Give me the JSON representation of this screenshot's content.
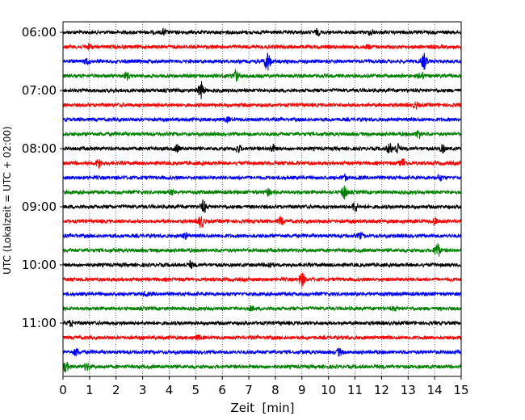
{
  "chart_data": {
    "type": "line",
    "title": "",
    "xlabel": "Zeit  [min]",
    "ylabel": "UTC (Lokalzeit = UTC + 02:00)",
    "xlim": [
      0,
      15
    ],
    "x_ticks": [
      "0",
      "1",
      "2",
      "3",
      "4",
      "5",
      "6",
      "7",
      "8",
      "9",
      "10",
      "11",
      "12",
      "13",
      "14",
      "15"
    ],
    "y_tick_labels": [
      "06:00",
      "07:00",
      "08:00",
      "09:00",
      "10:00",
      "11:00"
    ],
    "trace_interval_min": 15,
    "grid": "vertical dotted at each minute",
    "colors": [
      "#000000",
      "#ff0000",
      "#0000ff",
      "#008000"
    ],
    "traces": [
      {
        "start": "06:00",
        "color": "#000000",
        "events": [
          {
            "t": 3.8,
            "amp": 3
          },
          {
            "t": 9.6,
            "amp": 3
          },
          {
            "t": 11.6,
            "amp": 3
          }
        ]
      },
      {
        "start": "06:15",
        "color": "#ff0000",
        "events": [
          {
            "t": 1.0,
            "amp": 3
          },
          {
            "t": 11.5,
            "amp": 2
          }
        ]
      },
      {
        "start": "06:30",
        "color": "#0000ff",
        "events": [
          {
            "t": 7.7,
            "amp": 12
          },
          {
            "t": 13.6,
            "amp": 9
          },
          {
            "t": 0.9,
            "amp": 3
          }
        ]
      },
      {
        "start": "06:45",
        "color": "#008000",
        "events": [
          {
            "t": 2.4,
            "amp": 4
          },
          {
            "t": 6.5,
            "amp": 7
          },
          {
            "t": 13.5,
            "amp": 4
          }
        ]
      },
      {
        "start": "07:00",
        "color": "#000000",
        "events": [
          {
            "t": 5.2,
            "amp": 10
          }
        ]
      },
      {
        "start": "07:15",
        "color": "#ff0000",
        "events": [
          {
            "t": 13.3,
            "amp": 3
          }
        ]
      },
      {
        "start": "07:30",
        "color": "#0000ff",
        "events": [
          {
            "t": 6.2,
            "amp": 2
          }
        ]
      },
      {
        "start": "07:45",
        "color": "#008000",
        "events": [
          {
            "t": 13.4,
            "amp": 5
          }
        ]
      },
      {
        "start": "08:00",
        "color": "#000000",
        "events": [
          {
            "t": 4.3,
            "amp": 4
          },
          {
            "t": 6.6,
            "amp": 4
          },
          {
            "t": 7.9,
            "amp": 4
          },
          {
            "t": 12.3,
            "amp": 6
          },
          {
            "t": 12.6,
            "amp": 6
          },
          {
            "t": 14.3,
            "amp": 4
          }
        ]
      },
      {
        "start": "08:15",
        "color": "#ff0000",
        "events": [
          {
            "t": 1.35,
            "amp": 5
          },
          {
            "t": 12.8,
            "amp": 5
          }
        ]
      },
      {
        "start": "08:30",
        "color": "#0000ff",
        "events": [
          {
            "t": 10.6,
            "amp": 3
          },
          {
            "t": 14.2,
            "amp": 3
          }
        ]
      },
      {
        "start": "08:45",
        "color": "#008000",
        "events": [
          {
            "t": 4.1,
            "amp": 3
          },
          {
            "t": 7.7,
            "amp": 4
          },
          {
            "t": 10.6,
            "amp": 8
          }
        ]
      },
      {
        "start": "09:00",
        "color": "#000000",
        "events": [
          {
            "t": 5.3,
            "amp": 7
          },
          {
            "t": 11.0,
            "amp": 6
          }
        ]
      },
      {
        "start": "09:15",
        "color": "#ff0000",
        "events": [
          {
            "t": 5.2,
            "amp": 7
          },
          {
            "t": 8.2,
            "amp": 4
          },
          {
            "t": 14.0,
            "amp": 4
          }
        ]
      },
      {
        "start": "09:30",
        "color": "#0000ff",
        "events": [
          {
            "t": 4.6,
            "amp": 3
          },
          {
            "t": 11.2,
            "amp": 3
          }
        ]
      },
      {
        "start": "09:45",
        "color": "#008000",
        "events": [
          {
            "t": 14.1,
            "amp": 9
          }
        ]
      },
      {
        "start": "10:00",
        "color": "#000000",
        "events": [
          {
            "t": 4.8,
            "amp": 4
          },
          {
            "t": 7.8,
            "amp": 3
          }
        ]
      },
      {
        "start": "10:15",
        "color": "#ff0000",
        "events": [
          {
            "t": 9.0,
            "amp": 8
          }
        ]
      },
      {
        "start": "10:30",
        "color": "#0000ff",
        "events": [
          {
            "t": 3.1,
            "amp": 2
          }
        ]
      },
      {
        "start": "10:45",
        "color": "#008000",
        "events": [
          {
            "t": 7.1,
            "amp": 2
          },
          {
            "t": 12.5,
            "amp": 2
          }
        ]
      },
      {
        "start": "11:00",
        "color": "#000000",
        "events": [
          {
            "t": 0.3,
            "amp": 3
          }
        ]
      },
      {
        "start": "11:15",
        "color": "#ff0000",
        "events": [
          {
            "t": 5.1,
            "amp": 2
          }
        ]
      },
      {
        "start": "11:30",
        "color": "#0000ff",
        "events": [
          {
            "t": 0.5,
            "amp": 4
          },
          {
            "t": 10.4,
            "amp": 4
          }
        ]
      },
      {
        "start": "11:45",
        "color": "#008000",
        "events": [
          {
            "t": 0.1,
            "amp": 6
          },
          {
            "t": 0.9,
            "amp": 4
          }
        ]
      }
    ]
  }
}
